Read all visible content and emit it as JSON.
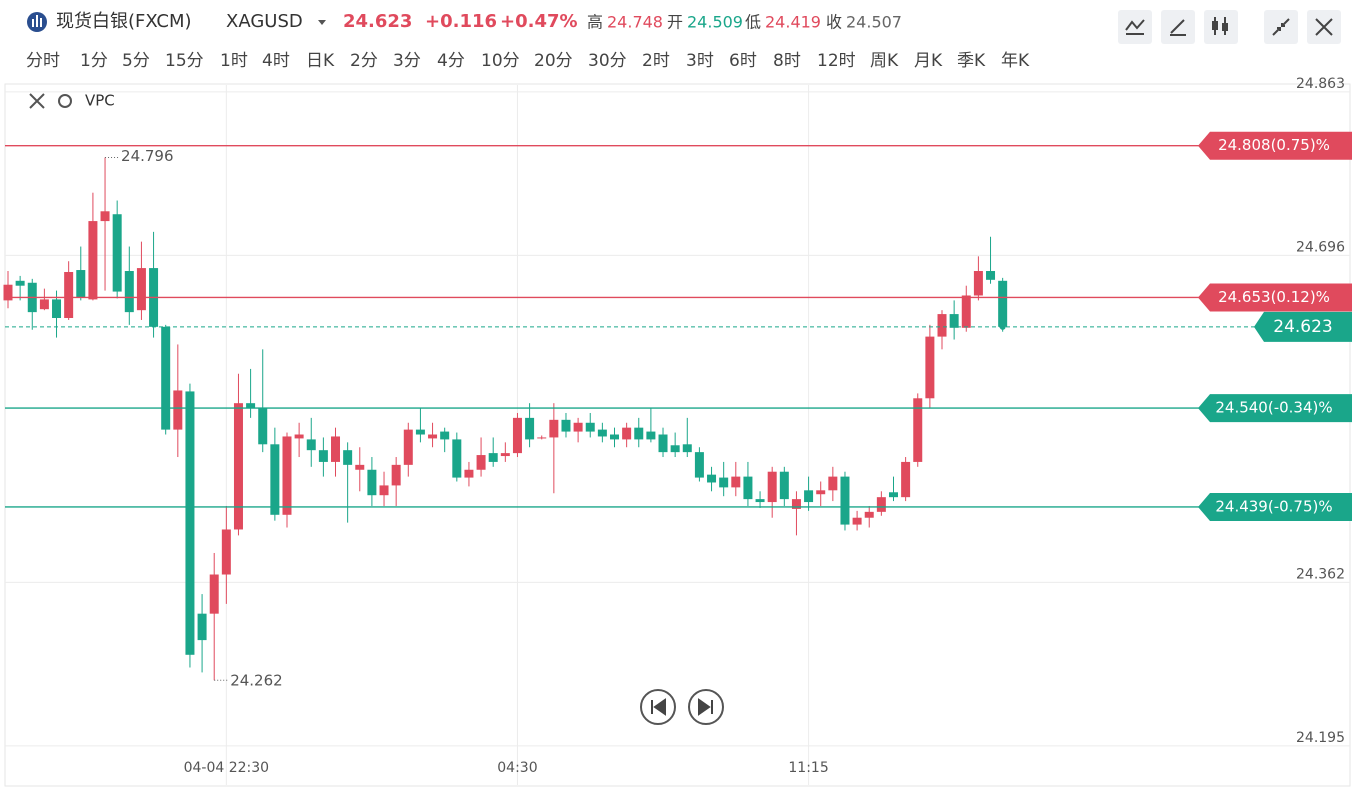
{
  "header": {
    "title": "现货白银(FXCM)",
    "symbol": "XAGUSD",
    "price": 24.623,
    "change": {
      "value": 0.116,
      "label": "+0.116"
    },
    "change_pct": {
      "value": 0.47,
      "label": "+0.47%"
    },
    "stats": [
      {
        "label": "高",
        "value": 24.748
      },
      {
        "label": "开",
        "value": 24.509
      },
      {
        "label": "低",
        "value": 24.419
      },
      {
        "label": "收",
        "value": 24.507
      }
    ]
  },
  "timeframes": [
    "分时",
    "1分",
    "5分",
    "15分",
    "1时",
    "4时",
    "日K",
    "2分",
    "3分",
    "4分",
    "10分",
    "20分",
    "30分",
    "2时",
    "3时",
    "6时",
    "8时",
    "12时",
    "周K",
    "月K",
    "季K",
    "年K"
  ],
  "indicator": "VPC",
  "chart_data": {
    "type": "candlestick",
    "up_color": "#e04a5d",
    "down_color": "#1aa68a",
    "categories": [
      null,
      null,
      null,
      null,
      null,
      null,
      null,
      null,
      null,
      null,
      null,
      null,
      null,
      null,
      null,
      null,
      null,
      null,
      "04-04 22:30",
      null,
      null,
      null,
      null,
      null,
      null,
      null,
      null,
      null,
      null,
      null,
      null,
      null,
      null,
      null,
      null,
      null,
      null,
      null,
      null,
      null,
      null,
      null,
      "04:30",
      null,
      null,
      null,
      null,
      null,
      null,
      null,
      null,
      null,
      null,
      null,
      null,
      null,
      null,
      null,
      null,
      null,
      null,
      null,
      null,
      null,
      null,
      null,
      "11:15",
      null,
      null,
      null,
      null,
      null,
      null,
      null,
      null,
      null,
      null,
      null,
      null,
      null,
      null,
      null,
      null
    ],
    "open": [
      24.65,
      24.67,
      24.668,
      24.641,
      24.651,
      24.632,
      24.681,
      24.651,
      24.731,
      24.738,
      24.68,
      24.64,
      24.683,
      24.623,
      24.518,
      24.557,
      24.33,
      24.33,
      24.37,
      24.416,
      24.545,
      24.54,
      24.503,
      24.431,
      24.509,
      24.508,
      24.497,
      24.485,
      24.497,
      24.477,
      24.477,
      24.451,
      24.461,
      24.482,
      24.518,
      24.509,
      24.516,
      24.508,
      24.469,
      24.477,
      24.494,
      24.491,
      24.494,
      24.53,
      24.51,
      24.51,
      24.528,
      24.516,
      24.525,
      24.518,
      24.513,
      24.508,
      24.52,
      24.516,
      24.513,
      24.502,
      24.503,
      24.495,
      24.472,
      24.469,
      24.459,
      24.47,
      24.447,
      24.444,
      24.475,
      24.437,
      24.456,
      24.452,
      24.456,
      24.47,
      24.421,
      24.428,
      24.434,
      24.454,
      24.449,
      24.485,
      24.55,
      24.613,
      24.636,
      24.622,
      24.655,
      24.68,
      24.67
    ],
    "high": [
      24.68,
      24.675,
      24.672,
      24.662,
      24.66,
      24.69,
      24.705,
      24.76,
      24.796,
      24.752,
      24.705,
      24.71,
      24.72,
      24.625,
      24.605,
      24.565,
      24.35,
      24.392,
      24.44,
      24.575,
      24.58,
      24.6,
      24.52,
      24.515,
      24.525,
      24.53,
      24.51,
      24.52,
      24.505,
      24.5,
      24.49,
      24.475,
      24.49,
      24.525,
      24.54,
      24.525,
      24.52,
      24.515,
      24.485,
      24.51,
      24.51,
      24.505,
      24.535,
      24.545,
      24.512,
      24.545,
      24.535,
      24.53,
      24.535,
      24.525,
      24.52,
      24.525,
      24.53,
      24.54,
      24.52,
      24.515,
      24.53,
      24.5,
      24.48,
      24.485,
      24.485,
      24.485,
      24.455,
      24.48,
      24.48,
      24.455,
      24.47,
      24.465,
      24.48,
      24.475,
      24.435,
      24.44,
      24.455,
      24.47,
      24.49,
      24.555,
      24.625,
      24.64,
      24.65,
      24.665,
      24.695,
      24.715,
      24.673
    ],
    "low": [
      24.642,
      24.65,
      24.62,
      24.64,
      24.612,
      24.63,
      24.65,
      24.65,
      24.66,
      24.652,
      24.625,
      24.63,
      24.612,
      24.513,
      24.49,
      24.275,
      24.27,
      24.262,
      24.34,
      24.41,
      24.53,
      24.495,
      24.425,
      24.418,
      24.49,
      24.48,
      24.47,
      24.47,
      24.423,
      24.455,
      24.44,
      24.44,
      24.44,
      24.47,
      24.505,
      24.5,
      24.495,
      24.465,
      24.46,
      24.47,
      24.48,
      24.485,
      24.49,
      24.5,
      24.508,
      24.453,
      24.51,
      24.505,
      24.51,
      24.505,
      24.5,
      24.5,
      24.5,
      24.505,
      24.49,
      24.49,
      24.49,
      24.465,
      24.455,
      24.45,
      24.45,
      24.44,
      24.438,
      24.428,
      24.44,
      24.41,
      24.435,
      24.44,
      24.445,
      24.415,
      24.415,
      24.418,
      24.43,
      24.445,
      24.445,
      24.48,
      24.54,
      24.6,
      24.61,
      24.618,
      24.65,
      24.667,
      24.618
    ],
    "close": [
      24.666,
      24.665,
      24.638,
      24.651,
      24.632,
      24.679,
      24.653,
      24.731,
      24.741,
      24.659,
      24.638,
      24.683,
      24.623,
      24.518,
      24.558,
      24.288,
      24.303,
      24.37,
      24.416,
      24.545,
      24.54,
      24.503,
      24.431,
      24.511,
      24.513,
      24.497,
      24.485,
      24.511,
      24.482,
      24.482,
      24.451,
      24.461,
      24.482,
      24.518,
      24.513,
      24.513,
      24.508,
      24.469,
      24.477,
      24.492,
      24.485,
      24.494,
      24.53,
      24.508,
      24.51,
      24.528,
      24.516,
      24.525,
      24.516,
      24.511,
      24.508,
      24.52,
      24.508,
      24.508,
      24.495,
      24.495,
      24.495,
      24.469,
      24.464,
      24.459,
      24.47,
      24.447,
      24.444,
      24.475,
      24.447,
      24.447,
      24.444,
      24.456,
      24.47,
      24.421,
      24.428,
      24.434,
      24.449,
      24.449,
      24.485,
      24.55,
      24.613,
      24.636,
      24.622,
      24.655,
      24.68,
      24.671,
      24.623
    ],
    "ylim": [
      24.155,
      24.87
    ],
    "yticks": [
      24.195,
      24.362,
      24.696,
      24.863
    ],
    "high_mark": {
      "index": 8,
      "value": 24.796
    },
    "low_mark": {
      "index": 17,
      "value": 24.262
    },
    "levels": [
      {
        "value": 24.808,
        "label": "24.808(0.75)%",
        "color": "#e04a5d"
      },
      {
        "value": 24.653,
        "label": "24.653(0.12)%",
        "color": "#e04a5d"
      },
      {
        "value": 24.54,
        "label": "24.540(-0.34)%",
        "color": "#1aa68a"
      },
      {
        "value": 24.439,
        "label": "24.439(-0.75)%",
        "color": "#1aa68a"
      }
    ],
    "last_price": {
      "value": 24.623,
      "color": "#1aa68a"
    }
  }
}
